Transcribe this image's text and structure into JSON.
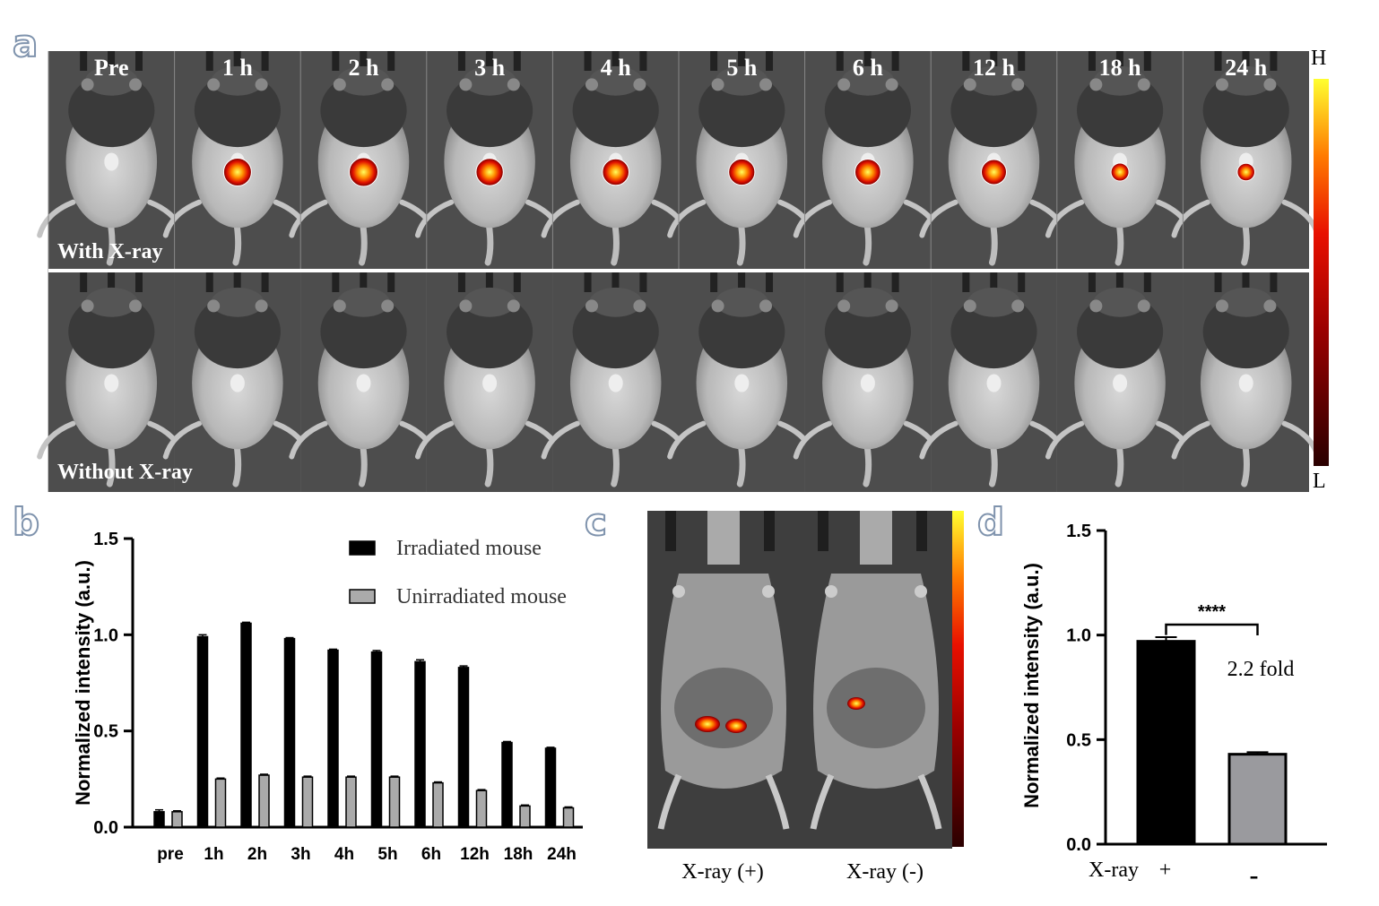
{
  "panel_labels": {
    "a": "a",
    "b": "b",
    "c": "c",
    "d": "d"
  },
  "panel_a": {
    "time_points": [
      "Pre",
      "1 h",
      "2 h",
      "3 h",
      "4 h",
      "5 h",
      "6 h",
      "12 h",
      "18 h",
      "24 h"
    ],
    "signal_levels": [
      0,
      0.95,
      1.0,
      0.92,
      0.88,
      0.86,
      0.84,
      0.8,
      0.4,
      0.38
    ],
    "row_labels": {
      "with": "With X-ray",
      "without": "Without X-ray"
    },
    "scale": {
      "high": "H",
      "low": "L"
    }
  },
  "chart_data": [
    {
      "type": "bar",
      "panel": "b",
      "categories": [
        "pre",
        "1h",
        "2h",
        "3h",
        "4h",
        "5h",
        "6h",
        "12h",
        "18h",
        "24h"
      ],
      "series": [
        {
          "name": "Irradiated mouse",
          "color": "#000000",
          "values": [
            0.08,
            0.99,
            1.06,
            0.98,
            0.92,
            0.91,
            0.86,
            0.83,
            0.44,
            0.41
          ],
          "errors": [
            0.01,
            0.01,
            0.005,
            0.005,
            0.005,
            0.008,
            0.01,
            0.008,
            0.005,
            0.005
          ]
        },
        {
          "name": "Unirradiated mouse",
          "color": "#aaaaaa",
          "values": [
            0.08,
            0.25,
            0.27,
            0.26,
            0.26,
            0.26,
            0.23,
            0.19,
            0.11,
            0.1
          ],
          "errors": [
            0.005,
            0.005,
            0.005,
            0.005,
            0.005,
            0.005,
            0.005,
            0.005,
            0.005,
            0.005
          ]
        }
      ],
      "ylabel": "Normalized intensity (a.u.)",
      "ylim": [
        0,
        1.5
      ],
      "yticks": [
        "0.0",
        "0.5",
        "1.0",
        "1.5"
      ],
      "legend": "top-right"
    },
    {
      "type": "bar",
      "panel": "d",
      "categories": [
        "+",
        "-"
      ],
      "values": [
        0.97,
        0.43
      ],
      "errors": [
        0.02,
        0.01
      ],
      "colors": [
        "#000000",
        "#9a9a9e"
      ],
      "ylabel": "Normalized intensity (a.u.)",
      "xlabel": "X-ray",
      "ylim": [
        0,
        1.5
      ],
      "yticks": [
        "0.0",
        "0.5",
        "1.0",
        "1.5"
      ],
      "significance": "****",
      "annotation": "2.2 fold"
    }
  ],
  "panel_c": {
    "labels": [
      "X-ray  (+)",
      "X-ray  (-)"
    ]
  }
}
